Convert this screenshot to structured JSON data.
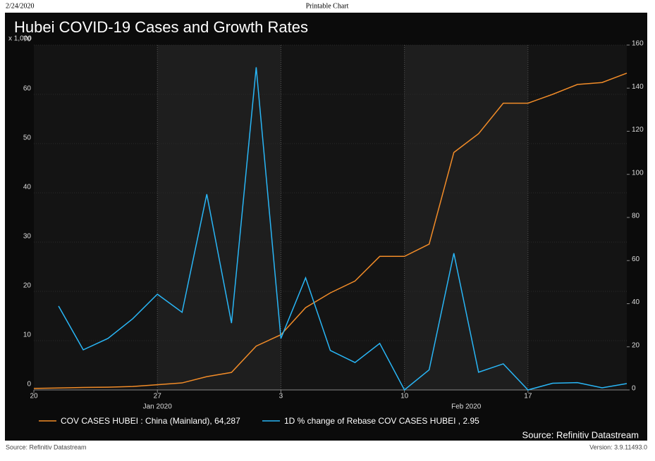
{
  "page": {
    "date": "2/24/2020",
    "heading": "Printable Chart",
    "footer_source": "Source: Refinitiv Datastream",
    "version": "Version: 3.9.11493.0"
  },
  "chart_data": {
    "type": "line",
    "title": "Hubei COVID-19 Cases and Growth Rates",
    "ylabel": "x 1,000",
    "source": "Source: Refinitiv Datastream",
    "categories": [
      "20",
      null,
      null,
      null,
      null,
      "27",
      null,
      null,
      null,
      null,
      "3",
      null,
      null,
      null,
      null,
      "10",
      null,
      null,
      null,
      null,
      "17",
      null,
      null,
      null,
      null
    ],
    "month_labels": [
      "Jan 2020",
      "Feb 2020"
    ],
    "ylim": [
      0,
      70
    ],
    "yticks": [
      0,
      10,
      20,
      30,
      40,
      50,
      60,
      70
    ],
    "y2lim": [
      0,
      160
    ],
    "y2ticks": [
      0,
      20,
      40,
      60,
      80,
      100,
      120,
      140,
      160
    ],
    "grid": true,
    "series": [
      {
        "name": "COV CASES HUBEI : China (Mainland), 64,287",
        "color": "#f28c28",
        "axis": "y",
        "values": [
          0.3,
          0.4,
          0.5,
          0.55,
          0.7,
          1.05,
          1.42,
          2.7,
          3.55,
          8.9,
          11.2,
          16.7,
          19.7,
          22.1,
          27.1,
          27.1,
          29.6,
          48.2,
          52.0,
          58.2,
          58.2,
          60.0,
          62.0,
          62.4,
          64.3
        ]
      },
      {
        "name": "1D % change of Rebase COV CASES HUBEI , 2.95",
        "color": "#29b6f6",
        "axis": "y2",
        "values": [
          null,
          38.9,
          18.6,
          23.9,
          33,
          44.4,
          36,
          90.8,
          31,
          149.7,
          23.9,
          52,
          18.3,
          12.7,
          21.6,
          0,
          9.3,
          63.4,
          8.2,
          12.1,
          0,
          3.1,
          3.4,
          1.0,
          2.95
        ]
      }
    ]
  }
}
